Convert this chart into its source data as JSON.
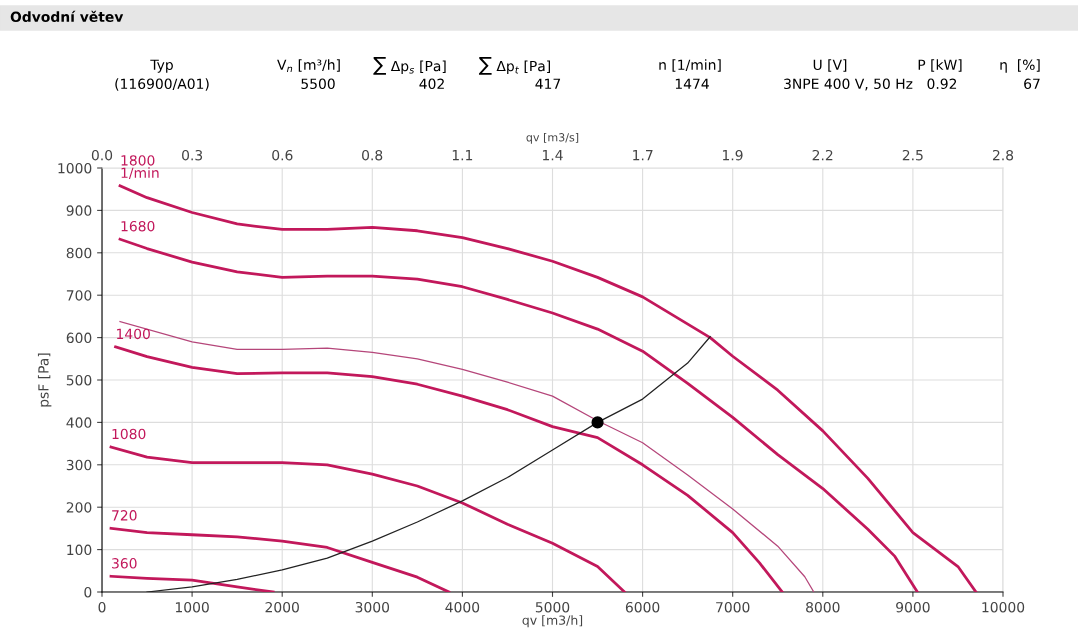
{
  "chart_data": {
    "type": "line",
    "title": "Odvodní větev",
    "annotations": [
      "Typ",
      "V$_{n}$ [m³/h]",
      "∑ Δp$_{s}$ [Pa]",
      "∑ Δp$_{t}$ [Pa]",
      "n [1/min]",
      "U [V]",
      "P [kW]",
      "η  [%]",
      "(116900/A01)",
      "5500",
      "402",
      "417",
      "1474",
      "3NPE 400 V, 50 Hz",
      "0.92",
      "67"
    ],
    "xlabel": "qv [m3/h]",
    "x2label": "qv [m3/s]",
    "ylabel": "psF [Pa]",
    "xlim": [
      0,
      10000
    ],
    "xticks": [
      0,
      1000,
      2000,
      3000,
      4000,
      5000,
      6000,
      7000,
      8000,
      9000,
      10000
    ],
    "x2lim": [
      0,
      2.778
    ],
    "x2ticks": [
      {
        "value": 0,
        "label": "0.0"
      },
      {
        "value": 0.278,
        "label": "0.3"
      },
      {
        "value": 0.556,
        "label": "0.6"
      },
      {
        "value": 0.833,
        "label": "0.8"
      },
      {
        "value": 1.111,
        "label": "1.1"
      },
      {
        "value": 1.389,
        "label": "1.4"
      },
      {
        "value": 1.667,
        "label": "1.7"
      },
      {
        "value": 1.944,
        "label": "1.9"
      },
      {
        "value": 2.222,
        "label": "2.2"
      },
      {
        "value": 2.5,
        "label": "2.5"
      },
      {
        "value": 2.778,
        "label": "2.8"
      }
    ],
    "ylim": [
      0,
      1000
    ],
    "yticks": [
      0,
      100,
      200,
      300,
      400,
      500,
      600,
      700,
      800,
      900,
      1000
    ],
    "grid": true,
    "legend": false,
    "marker": "none",
    "line_style": "solid",
    "series": [
      {
        "name": "1800\n1/min",
        "color": "#c2185b",
        "x": [
          200,
          500,
          1000,
          1500,
          2000,
          2500,
          3000,
          3500,
          4000,
          4500,
          5000,
          5500,
          6000,
          6750,
          7000,
          7500,
          8000,
          8500,
          9000,
          9500,
          9700
        ],
        "values": [
          958,
          930,
          895,
          868,
          855,
          855,
          860,
          852,
          836,
          810,
          780,
          742,
          696,
          600,
          556,
          476,
          380,
          268,
          140,
          60,
          0
        ]
      },
      {
        "name": "1680",
        "color": "#c2185b",
        "x": [
          200,
          500,
          1000,
          1500,
          2000,
          2500,
          3000,
          3500,
          4000,
          4500,
          5000,
          5500,
          6000,
          6500,
          7000,
          7500,
          8000,
          8500,
          8800,
          9050
        ],
        "values": [
          832,
          810,
          778,
          755,
          742,
          745,
          745,
          738,
          720,
          690,
          658,
          620,
          568,
          492,
          412,
          324,
          244,
          148,
          84,
          0
        ]
      },
      {
        "color": "#b5467a",
        "x": [
          200,
          1000,
          1500,
          2000,
          2500,
          3000,
          3500,
          4000,
          4500,
          5000,
          5500,
          6000,
          6500,
          7000,
          7500,
          7800,
          7900
        ],
        "values": [
          638,
          590,
          572,
          572,
          575,
          565,
          550,
          525,
          495,
          462,
          404,
          352,
          276,
          196,
          108,
          36,
          0
        ]
      },
      {
        "name": "1400",
        "color": "#c2185b",
        "x": [
          150,
          500,
          1000,
          1500,
          2000,
          2500,
          3000,
          3500,
          4000,
          4500,
          5000,
          5500,
          6000,
          6500,
          7000,
          7300,
          7550
        ],
        "values": [
          578,
          555,
          530,
          515,
          517,
          517,
          508,
          490,
          462,
          430,
          390,
          364,
          300,
          228,
          140,
          68,
          0
        ]
      },
      {
        "name": "1080",
        "color": "#c2185b",
        "x": [
          100,
          500,
          1000,
          1500,
          2000,
          2500,
          3000,
          3500,
          4000,
          4500,
          5000,
          5500,
          5800
        ],
        "values": [
          342,
          318,
          305,
          305,
          305,
          300,
          278,
          250,
          210,
          160,
          115,
          60,
          0
        ]
      },
      {
        "name": "720",
        "color": "#c2185b",
        "x": [
          100,
          500,
          1000,
          1500,
          2000,
          2500,
          3000,
          3500,
          3850
        ],
        "values": [
          150,
          140,
          135,
          130,
          120,
          105,
          70,
          35,
          0
        ]
      },
      {
        "name": "360",
        "color": "#c2185b",
        "x": [
          100,
          500,
          1000,
          1500,
          1900
        ],
        "values": [
          37,
          32,
          28,
          12,
          0
        ]
      },
      {
        "color": "#222222",
        "x": [
          500,
          1000,
          1500,
          2000,
          2500,
          3000,
          3500,
          4000,
          4500,
          5000,
          5500,
          6000,
          6500,
          6750
        ],
        "values": [
          0,
          12,
          30,
          52,
          80,
          120,
          165,
          215,
          270,
          335,
          400,
          455,
          540,
          602
        ]
      },
      {
        "type": "scatter",
        "color": "#000000",
        "marker": "circle",
        "x": [
          5500
        ],
        "values": [
          400
        ]
      }
    ]
  }
}
